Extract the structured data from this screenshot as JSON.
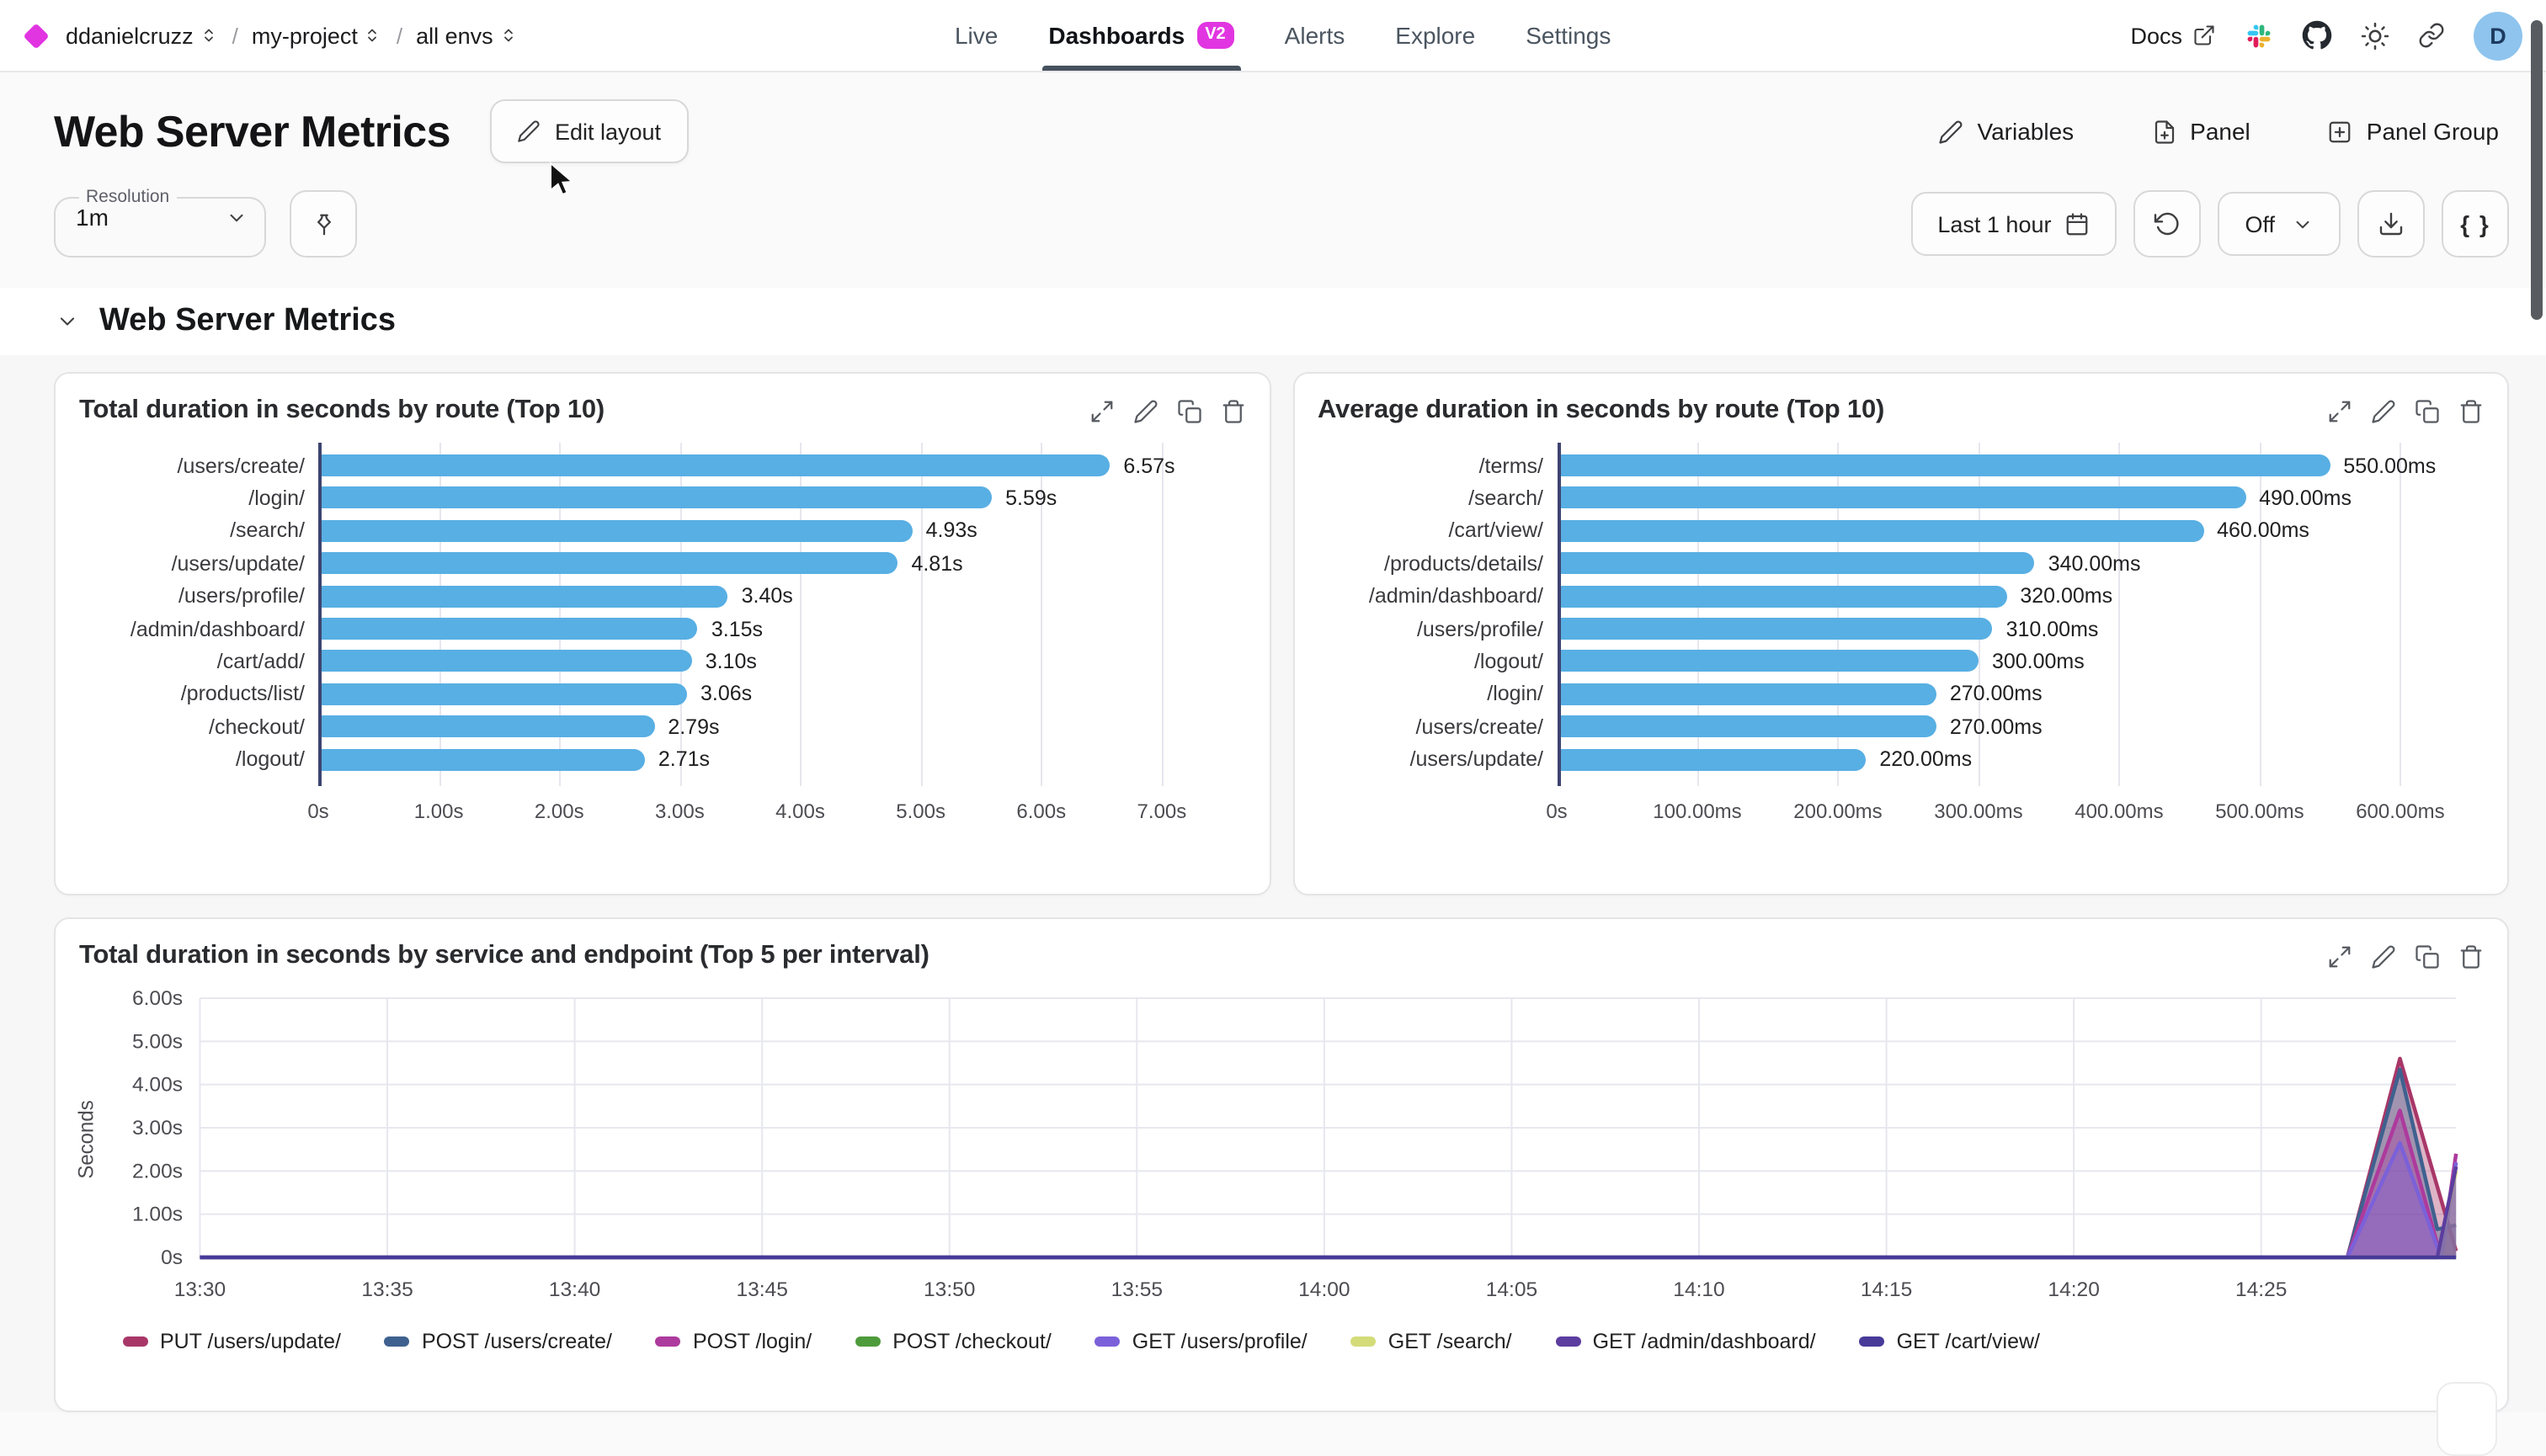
{
  "nav": {
    "org": "ddanielcruzz",
    "project": "my-project",
    "env": "all envs",
    "separator": "/",
    "tabs": [
      {
        "label": "Live",
        "active": false
      },
      {
        "label": "Dashboards",
        "active": true,
        "badge": "V2"
      },
      {
        "label": "Alerts",
        "active": false
      },
      {
        "label": "Explore",
        "active": false
      },
      {
        "label": "Settings",
        "active": false
      }
    ],
    "docs_label": "Docs",
    "avatar_initial": "D"
  },
  "header": {
    "title": "Web Server Metrics",
    "edit_layout_label": "Edit layout",
    "variables_label": "Variables",
    "panel_label": "Panel",
    "panel_group_label": "Panel Group"
  },
  "controls": {
    "resolution_label": "Resolution",
    "resolution_value": "1m",
    "time_range_label": "Last 1 hour",
    "refresh_value": "Off",
    "braces_label": "{ }"
  },
  "section": {
    "title": "Web Server Metrics"
  },
  "icons": {
    "diamond-logo": "magenta rotated square",
    "selector": "up-down chevrons",
    "external-link": "arrow out of box",
    "slack": "colored slack mark",
    "github": "octocat circle",
    "sun": "theme toggle sun",
    "link": "chain link",
    "pencil": "edit pen",
    "file-plus": "document with plus",
    "plus-square": "plus in square",
    "pin": "push pin",
    "calendar": "calendar grid",
    "rotate-ccw": "refresh arrow",
    "chevron-down": "down chevron",
    "download": "arrow into tray",
    "maximize": "expand diagonal arrows",
    "copy": "duplicate squares",
    "trash": "trash bin",
    "cursor": "mouse pointer"
  },
  "colors": {
    "accent_magenta": "#e135e1",
    "bar_blue": "#58afe3",
    "axis_dark": "#3d4470",
    "tab_underline": "#46525e",
    "avatar_bg": "#8ec4ee"
  },
  "chart_data": [
    {
      "type": "bar",
      "orientation": "horizontal",
      "title": "Total duration in seconds by route (Top 10)",
      "categories": [
        "/users/create/",
        "/login/",
        "/search/",
        "/users/update/",
        "/users/profile/",
        "/admin/dashboard/",
        "/cart/add/",
        "/products/list/",
        "/checkout/",
        "/logout/"
      ],
      "values": [
        6.57,
        5.59,
        4.93,
        4.81,
        3.4,
        3.15,
        3.1,
        3.06,
        2.79,
        2.71
      ],
      "value_labels": [
        "6.57s",
        "5.59s",
        "4.93s",
        "4.81s",
        "3.40s",
        "3.15s",
        "3.10s",
        "3.06s",
        "2.79s",
        "2.71s"
      ],
      "axis_max": 7,
      "ticks": [
        "0s",
        "1.00s",
        "2.00s",
        "3.00s",
        "4.00s",
        "5.00s",
        "6.00s",
        "7.00s"
      ],
      "bar_color": "#58afe3",
      "grid": true
    },
    {
      "type": "bar",
      "orientation": "horizontal",
      "title": "Average duration in seconds by route (Top 10)",
      "categories": [
        "/terms/",
        "/search/",
        "/cart/view/",
        "/products/details/",
        "/admin/dashboard/",
        "/users/profile/",
        "/logout/",
        "/login/",
        "/users/create/",
        "/users/update/"
      ],
      "values": [
        550,
        490,
        460,
        340,
        320,
        310,
        300,
        270,
        270,
        220
      ],
      "value_labels": [
        "550.00ms",
        "490.00ms",
        "460.00ms",
        "340.00ms",
        "320.00ms",
        "310.00ms",
        "300.00ms",
        "270.00ms",
        "270.00ms",
        "220.00ms"
      ],
      "axis_max": 600,
      "ticks": [
        "0s",
        "100.00ms",
        "200.00ms",
        "300.00ms",
        "400.00ms",
        "500.00ms",
        "600.00ms"
      ],
      "bar_color": "#58afe3",
      "grid": true
    },
    {
      "type": "area",
      "title": "Total duration in seconds by service and endpoint (Top 5 per interval)",
      "ylabel": "Seconds",
      "yticks": [
        "6.00s",
        "5.00s",
        "4.00s",
        "3.00s",
        "2.00s",
        "1.00s",
        "0s"
      ],
      "ylim": [
        0,
        6
      ],
      "xticks": [
        "13:30",
        "13:35",
        "13:40",
        "13:45",
        "13:50",
        "13:55",
        "14:00",
        "14:05",
        "14:10",
        "14:15",
        "14:20",
        "14:25"
      ],
      "x_minutes_range": [
        0,
        60.2
      ],
      "grid": true,
      "legend_position": "bottom",
      "series": [
        {
          "name": "PUT /users/update/",
          "color": "#a83768",
          "points": [
            [
              0,
              0
            ],
            [
              57.3,
              0
            ],
            [
              58.7,
              4.6
            ],
            [
              60.2,
              0.15
            ]
          ]
        },
        {
          "name": "POST /users/create/",
          "color": "#3f618f",
          "points": [
            [
              0,
              0
            ],
            [
              57.3,
              0
            ],
            [
              58.7,
              4.35
            ],
            [
              59.7,
              0.65
            ],
            [
              60.2,
              0.75
            ]
          ]
        },
        {
          "name": "POST /login/",
          "color": "#ad3a9d",
          "points": [
            [
              0,
              0
            ],
            [
              57.3,
              0
            ],
            [
              58.7,
              3.4
            ],
            [
              59.8,
              0
            ],
            [
              60.2,
              2.4
            ]
          ]
        },
        {
          "name": "POST /checkout/",
          "color": "#4e9b3b",
          "points": [
            [
              0,
              0
            ],
            [
              60.2,
              0
            ]
          ]
        },
        {
          "name": "GET /users/profile/",
          "color": "#7b61d9",
          "points": [
            [
              0,
              0
            ],
            [
              57.3,
              0
            ],
            [
              58.7,
              2.65
            ],
            [
              59.8,
              0
            ],
            [
              60.2,
              2.2
            ]
          ]
        },
        {
          "name": "GET /search/",
          "color": "#d3dc79",
          "points": [
            [
              0,
              0
            ],
            [
              59.7,
              0
            ],
            [
              60.2,
              2.0
            ]
          ]
        },
        {
          "name": "GET /admin/dashboard/",
          "color": "#5c3da0",
          "points": [
            [
              0,
              0
            ],
            [
              59.7,
              0
            ],
            [
              60.2,
              2.1
            ]
          ]
        },
        {
          "name": "GET /cart/view/",
          "color": "#473a99",
          "points": [
            [
              0,
              0
            ],
            [
              60.2,
              0
            ]
          ]
        }
      ]
    }
  ]
}
